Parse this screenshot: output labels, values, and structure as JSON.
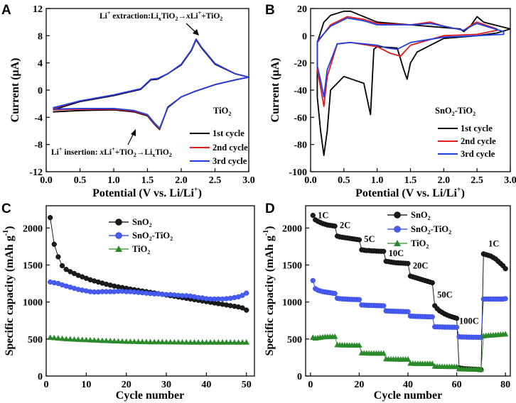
{
  "chart_data": [
    {
      "panel": "A",
      "type": "line",
      "xlabel": "Potential (V vs. Li/Li",
      "xlabel_sup": "+",
      "xlabel_end": ")",
      "ylabel": "Current (μA)",
      "xlim": [
        0,
        3.0
      ],
      "ylim": [
        -12,
        12
      ],
      "xticks": [
        "0.0",
        "0.5",
        "1.0",
        "1.5",
        "2.0",
        "2.5",
        "3.0"
      ],
      "yticks": [
        "-12",
        "-8",
        "-4",
        "0",
        "4",
        "8",
        "12"
      ],
      "legend_title": "TiO",
      "legend_title_sub": "2",
      "annotation_top": "Li+ extraction:LixTiO2→xLi++TiO2",
      "annotation_bottom": "Li+ insertion: xLi++TiO2→LixTiO2",
      "series": [
        {
          "name": "1st cycle",
          "color": "#000000",
          "x": [
            0.1,
            0.5,
            1.0,
            1.4,
            1.55,
            1.65,
            1.8,
            2.0,
            2.15,
            2.22,
            2.3,
            2.5,
            2.8,
            3.0,
            2.8,
            2.5,
            2.2,
            2.0,
            1.8,
            1.68,
            1.6,
            1.5,
            1.3,
            1.0,
            0.5,
            0.1
          ],
          "y": [
            -2.9,
            -1.7,
            -0.8,
            0.1,
            1.5,
            1.6,
            2.4,
            3.7,
            5.8,
            7.4,
            6.2,
            3.8,
            2.4,
            1.9,
            1.5,
            0.8,
            -0.2,
            -1.0,
            -2.5,
            -5.8,
            -5.0,
            -3.8,
            -3.2,
            -2.9,
            -3.0,
            -3.2
          ]
        },
        {
          "name": "2nd cycle",
          "color": "#e31a1c",
          "x": [
            0.1,
            0.5,
            1.0,
            1.4,
            1.55,
            1.65,
            1.8,
            2.0,
            2.15,
            2.22,
            2.3,
            2.5,
            2.8,
            3.0,
            2.8,
            2.5,
            2.2,
            2.0,
            1.8,
            1.68,
            1.6,
            1.5,
            1.3,
            1.0,
            0.5,
            0.1
          ],
          "y": [
            -2.7,
            -1.6,
            -0.7,
            0.2,
            1.6,
            1.7,
            2.4,
            3.8,
            5.9,
            7.5,
            6.3,
            3.9,
            2.4,
            1.9,
            1.5,
            0.8,
            -0.2,
            -1.0,
            -2.6,
            -5.7,
            -4.9,
            -3.7,
            -3.1,
            -2.8,
            -2.8,
            -2.9
          ]
        },
        {
          "name": "3rd cycle",
          "color": "#1f3fe0",
          "x": [
            0.1,
            0.5,
            1.0,
            1.4,
            1.55,
            1.65,
            1.8,
            2.0,
            2.15,
            2.22,
            2.3,
            2.5,
            2.8,
            3.0,
            2.8,
            2.5,
            2.2,
            2.0,
            1.8,
            1.68,
            1.6,
            1.5,
            1.3,
            1.0,
            0.5,
            0.1
          ],
          "y": [
            -2.6,
            -1.6,
            -0.7,
            0.2,
            1.6,
            1.7,
            2.4,
            3.8,
            5.9,
            7.5,
            6.3,
            3.9,
            2.4,
            1.9,
            1.5,
            0.8,
            -0.2,
            -1.0,
            -2.6,
            -5.6,
            -4.8,
            -3.6,
            -3.0,
            -2.7,
            -2.7,
            -2.8
          ]
        }
      ]
    },
    {
      "panel": "B",
      "type": "line",
      "xlabel": "Potential (V vs. Li/Li",
      "xlabel_sup": "+",
      "xlabel_end": ")",
      "ylabel": "Current (μA)",
      "xlim": [
        0,
        3.0
      ],
      "ylim": [
        -100,
        20
      ],
      "xticks": [
        "0.0",
        "0.5",
        "1.0",
        "1.5",
        "2.0",
        "2.5",
        "3.0"
      ],
      "yticks": [
        "-100",
        "-80",
        "-60",
        "-40",
        "-20",
        "0",
        "20"
      ],
      "legend_title": "SnO",
      "legend_title_mid": "2",
      "legend_title_end": "-TiO",
      "legend_title_sub": "2",
      "series": [
        {
          "name": "1st cycle",
          "color": "#000000",
          "x": [
            0.1,
            0.2,
            0.3,
            0.5,
            0.6,
            0.8,
            1.0,
            1.5,
            2.0,
            2.25,
            2.3,
            2.4,
            2.5,
            2.6,
            3.0,
            2.8,
            2.5,
            2.0,
            1.6,
            1.5,
            1.45,
            1.4,
            1.3,
            1.0,
            0.95,
            0.9,
            0.8,
            0.5,
            0.3,
            0.25,
            0.2,
            0.15,
            0.1,
            0.1
          ],
          "y": [
            -5,
            10,
            15,
            18,
            18,
            14,
            10,
            8,
            6,
            5,
            3,
            7,
            14,
            10,
            5,
            2,
            0,
            -2,
            -12,
            -20,
            -32,
            -25,
            -9,
            -8,
            -10,
            -58,
            -35,
            -30,
            -40,
            -70,
            -88,
            -70,
            -45,
            -5
          ]
        },
        {
          "name": "2nd cycle",
          "color": "#e31a1c",
          "x": [
            0.1,
            0.3,
            0.55,
            0.8,
            1.0,
            1.5,
            1.8,
            2.0,
            2.3,
            2.45,
            2.5,
            2.8,
            2.8,
            2.5,
            2.0,
            1.5,
            1.35,
            1.2,
            1.0,
            0.6,
            0.4,
            0.25,
            0.2,
            0.15,
            0.1,
            0.1
          ],
          "y": [
            -5,
            8,
            14,
            12,
            9,
            8,
            10,
            7,
            4,
            9,
            10,
            5,
            4,
            1,
            0,
            -7,
            -15,
            -13,
            -8,
            -5,
            -6,
            -30,
            -52,
            -38,
            -25,
            -5
          ]
        },
        {
          "name": "3rd cycle",
          "color": "#1f3fe0",
          "x": [
            0.1,
            0.3,
            0.55,
            0.8,
            1.0,
            1.5,
            1.8,
            2.0,
            2.3,
            2.45,
            2.5,
            2.9,
            2.9,
            2.5,
            2.0,
            1.5,
            1.3,
            1.15,
            1.0,
            0.6,
            0.4,
            0.25,
            0.2,
            0.15,
            0.1,
            0.1
          ],
          "y": [
            -4,
            7,
            13,
            11,
            8,
            8,
            9,
            7,
            4,
            8,
            9,
            3,
            1,
            0,
            -1,
            -5,
            -10,
            -9,
            -7,
            -5,
            -6,
            -25,
            -45,
            -33,
            -22,
            -4
          ]
        }
      ]
    },
    {
      "panel": "C",
      "type": "scatter",
      "xlabel": "Cycle number",
      "ylabel": "Specific capacity (mAh g",
      "ylabel_sup": "-1",
      "ylabel_end": ")",
      "xlim": [
        0,
        52
      ],
      "ylim": [
        0,
        2300
      ],
      "xticks": [
        "0",
        "10",
        "20",
        "30",
        "40",
        "50"
      ],
      "yticks": [
        "0",
        "500",
        "1000",
        "1500",
        "2000"
      ],
      "x": [
        1,
        2,
        3,
        4,
        5,
        6,
        7,
        8,
        9,
        10,
        11,
        12,
        13,
        14,
        15,
        16,
        17,
        18,
        19,
        20,
        21,
        22,
        23,
        24,
        25,
        26,
        27,
        28,
        29,
        30,
        31,
        32,
        33,
        34,
        35,
        36,
        37,
        38,
        39,
        40,
        41,
        42,
        43,
        44,
        45,
        46,
        47,
        48,
        49,
        50
      ],
      "series": [
        {
          "name": "SnO2",
          "name_main": "SnO",
          "name_sub": "2",
          "color": "#000000",
          "values": [
            2140,
            1780,
            1610,
            1490,
            1440,
            1410,
            1385,
            1360,
            1340,
            1320,
            1300,
            1285,
            1270,
            1255,
            1240,
            1228,
            1215,
            1205,
            1195,
            1185,
            1175,
            1166,
            1157,
            1148,
            1140,
            1131,
            1122,
            1113,
            1104,
            1095,
            1086,
            1077,
            1068,
            1059,
            1050,
            1041,
            1032,
            1023,
            1014,
            1005,
            996,
            987,
            978,
            969,
            960,
            951,
            942,
            933,
            920,
            890
          ]
        },
        {
          "name": "SnO2-TiO2",
          "name_main": "SnO",
          "name_sub": "2",
          "name_tail": "-TiO",
          "name_sub2": "2",
          "color": "#1f3fe0",
          "values": [
            1270,
            1260,
            1250,
            1230,
            1215,
            1200,
            1185,
            1170,
            1160,
            1150,
            1140,
            1135,
            1135,
            1140,
            1140,
            1140,
            1140,
            1145,
            1145,
            1140,
            1140,
            1135,
            1130,
            1125,
            1120,
            1115,
            1110,
            1110,
            1105,
            1100,
            1100,
            1095,
            1090,
            1085,
            1085,
            1080,
            1070,
            1060,
            1055,
            1045,
            1040,
            1040,
            1040,
            1040,
            1045,
            1050,
            1060,
            1070,
            1090,
            1120
          ]
        },
        {
          "name": "TiO2",
          "name_main": "TiO",
          "name_sub": "2",
          "color": "#2a8a2a",
          "values": [
            520,
            515,
            510,
            505,
            500,
            498,
            495,
            492,
            490,
            488,
            485,
            483,
            480,
            478,
            476,
            474,
            472,
            470,
            468,
            466,
            465,
            464,
            463,
            462,
            461,
            460,
            460,
            459,
            459,
            458,
            458,
            457,
            457,
            456,
            456,
            455,
            455,
            455,
            455,
            455,
            455,
            455,
            455,
            455,
            455,
            455,
            455,
            455,
            455,
            455
          ]
        }
      ]
    },
    {
      "panel": "D",
      "type": "scatter",
      "xlabel": "Cycle number",
      "ylabel": "Specific capacity (mAh g",
      "ylabel_sup": "-1",
      "ylabel_end": ")",
      "xlim": [
        -2,
        82
      ],
      "ylim": [
        0,
        2300
      ],
      "xticks": [
        "0",
        "20",
        "40",
        "60",
        "80"
      ],
      "yticks": [
        "0",
        "500",
        "1000",
        "1500",
        "2000"
      ],
      "rate_labels": [
        {
          "text": "1C",
          "x": 3,
          "y": 2130
        },
        {
          "text": "2C",
          "x": 12,
          "y": 2000
        },
        {
          "text": "5C",
          "x": 22,
          "y": 1810
        },
        {
          "text": "10C",
          "x": 32,
          "y": 1620
        },
        {
          "text": "20C",
          "x": 42,
          "y": 1450
        },
        {
          "text": "50C",
          "x": 52,
          "y": 1060
        },
        {
          "text": "100C",
          "x": 61,
          "y": 705
        },
        {
          "text": "1C",
          "x": 73,
          "y": 1750
        }
      ],
      "x": [
        1,
        2,
        3,
        4,
        5,
        6,
        7,
        8,
        9,
        10,
        11,
        12,
        13,
        14,
        15,
        16,
        17,
        18,
        19,
        20,
        21,
        22,
        23,
        24,
        25,
        26,
        27,
        28,
        29,
        30,
        31,
        32,
        33,
        34,
        35,
        36,
        37,
        38,
        39,
        40,
        41,
        42,
        43,
        44,
        45,
        46,
        47,
        48,
        49,
        50,
        51,
        52,
        53,
        54,
        55,
        56,
        57,
        58,
        59,
        60,
        61,
        62,
        63,
        64,
        65,
        66,
        67,
        68,
        69,
        70,
        71,
        72,
        73,
        74,
        75,
        76,
        77,
        78,
        79,
        80
      ],
      "series": [
        {
          "name": "SnO2",
          "name_main": "SnO",
          "name_sub": "2",
          "color": "#000000",
          "values": [
            2170,
            2110,
            2090,
            2075,
            2060,
            2050,
            2040,
            2035,
            2030,
            2025,
            1890,
            1880,
            1875,
            1870,
            1865,
            1860,
            1855,
            1850,
            1845,
            1840,
            1705,
            1700,
            1695,
            1695,
            1690,
            1690,
            1688,
            1686,
            1685,
            1684,
            1550,
            1545,
            1540,
            1535,
            1530,
            1528,
            1526,
            1524,
            1522,
            1520,
            1350,
            1340,
            1330,
            1320,
            1310,
            1300,
            1290,
            1280,
            1270,
            1260,
            950,
            910,
            880,
            860,
            840,
            825,
            812,
            800,
            790,
            780,
            110,
            105,
            100,
            98,
            96,
            94,
            92,
            90,
            88,
            86,
            1650,
            1640,
            1630,
            1620,
            1600,
            1580,
            1550,
            1520,
            1490,
            1450
          ]
        },
        {
          "name": "SnO2-TiO2",
          "name_main": "SnO",
          "name_sub": "2",
          "name_tail": "-TiO",
          "name_sub2": "2",
          "color": "#1f3fe0",
          "values": [
            1290,
            1180,
            1160,
            1150,
            1140,
            1135,
            1130,
            1125,
            1120,
            1115,
            1050,
            1045,
            1042,
            1040,
            1038,
            1036,
            1035,
            1034,
            1033,
            1032,
            960,
            958,
            956,
            955,
            954,
            953,
            952,
            951,
            950,
            949,
            880,
            878,
            876,
            875,
            874,
            873,
            872,
            871,
            870,
            869,
            810,
            808,
            806,
            805,
            804,
            803,
            802,
            801,
            800,
            799,
            665,
            664,
            663,
            662,
            661,
            660,
            660,
            659,
            659,
            658,
            530,
            528,
            527,
            526,
            525,
            525,
            524,
            524,
            523,
            523,
            1040,
            1040,
            1040,
            1040,
            1040,
            1040,
            1040,
            1040,
            1040,
            1045
          ]
        },
        {
          "name": "TiO2",
          "name_main": "TiO",
          "name_sub": "2",
          "color": "#2a8a2a",
          "values": [
            520,
            510,
            515,
            520,
            525,
            528,
            530,
            530,
            531,
            532,
            420,
            418,
            417,
            416,
            416,
            415,
            415,
            415,
            415,
            415,
            310,
            308,
            307,
            306,
            306,
            305,
            305,
            305,
            305,
            305,
            230,
            228,
            227,
            226,
            226,
            225,
            225,
            225,
            225,
            225,
            170,
            168,
            167,
            167,
            166,
            166,
            166,
            166,
            166,
            165,
            130,
            128,
            127,
            126,
            126,
            125,
            125,
            125,
            125,
            125,
            95,
            93,
            92,
            92,
            91,
            91,
            91,
            90,
            90,
            90,
            540,
            545,
            548,
            550,
            552,
            555,
            558,
            560,
            562,
            565
          ]
        }
      ]
    }
  ]
}
